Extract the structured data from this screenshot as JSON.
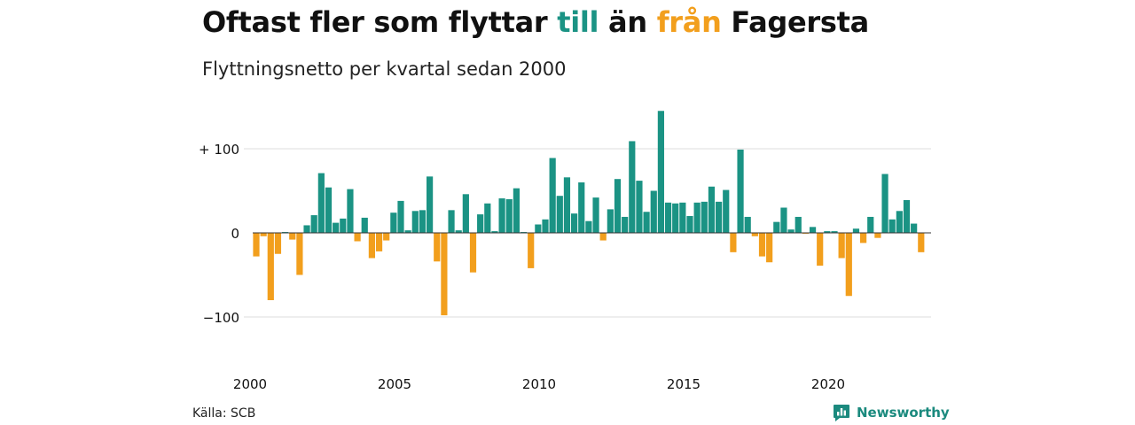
{
  "title": {
    "part1": "Oftast fler som flyttar ",
    "word_till": "till",
    "part2": " än ",
    "word_fran": "från",
    "part3": " Fagersta"
  },
  "subtitle": "Flyttningsnetto per kvartal sedan 2000",
  "source": "Källa: SCB",
  "brand": {
    "name": "Newsworthy",
    "icon": "newsworthy-logo-icon"
  },
  "colors": {
    "positive": "#1b9384",
    "negative": "#f29f1d",
    "till": "#1b9384",
    "fran": "#f29f1d",
    "grid": "#dddddd",
    "zero": "#333333"
  },
  "chart_data": {
    "type": "bar",
    "title": "Oftast fler som flyttar till än från Fagersta",
    "subtitle": "Flyttningsnetto per kvartal sedan 2000",
    "xlabel": "",
    "ylabel": "",
    "x_start": {
      "year": 2000,
      "quarter": 1
    },
    "periods_per_year": 4,
    "ylim": [
      -140,
      150
    ],
    "y_ticks": [
      {
        "value": 100,
        "label": "+ 100"
      },
      {
        "value": 0,
        "label": "0"
      },
      {
        "value": -100,
        "label": "−100"
      }
    ],
    "x_ticks": [
      "2000",
      "2005",
      "2010",
      "2015",
      "2020"
    ],
    "grid": true,
    "values": [
      -28,
      -4,
      -80,
      -25,
      1,
      -8,
      -50,
      9,
      21,
      71,
      54,
      12,
      17,
      52,
      -10,
      18,
      -30,
      -22,
      -9,
      24,
      38,
      3,
      26,
      27,
      67,
      -34,
      -98,
      27,
      3,
      46,
      -47,
      22,
      35,
      2,
      41,
      40,
      53,
      1,
      -42,
      10,
      16,
      89,
      44,
      66,
      23,
      60,
      14,
      42,
      -9,
      28,
      64,
      19,
      109,
      62,
      25,
      50,
      145,
      36,
      35,
      36,
      20,
      36,
      37,
      55,
      37,
      51,
      -23,
      99,
      19,
      -4,
      -28,
      -35,
      13,
      30,
      4,
      19,
      -1,
      7,
      -39,
      2,
      2,
      -30,
      -75,
      5,
      -12,
      19,
      -6,
      70,
      16,
      26,
      39,
      11,
      -23
    ]
  }
}
